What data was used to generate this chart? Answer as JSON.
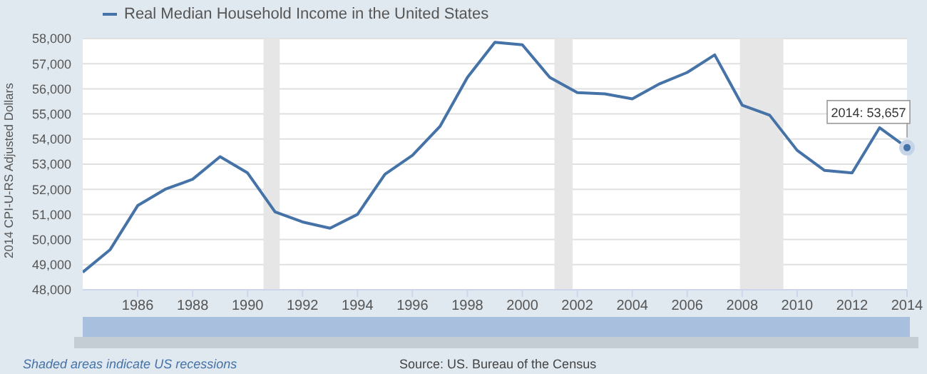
{
  "chart_data": {
    "type": "line",
    "ylabel": "2014 CPI-U-RS Adjusted Dollars",
    "x": [
      1984,
      1985,
      1986,
      1987,
      1988,
      1989,
      1990,
      1991,
      1992,
      1993,
      1994,
      1995,
      1996,
      1997,
      1998,
      1999,
      2000,
      2001,
      2002,
      2003,
      2004,
      2005,
      2006,
      2007,
      2008,
      2009,
      2010,
      2011,
      2012,
      2013,
      2014
    ],
    "series": [
      {
        "name": "Real Median Household Income in the United States",
        "color": "#4572a7",
        "values": [
          48700,
          49600,
          51350,
          52000,
          52400,
          53300,
          52650,
          51100,
          50700,
          50450,
          51000,
          52600,
          53350,
          54500,
          56450,
          57850,
          57750,
          56450,
          55850,
          55800,
          55600,
          56200,
          56650,
          57350,
          55350,
          54950,
          53550,
          52750,
          52650,
          54450,
          53657
        ]
      }
    ],
    "xlim": [
      1984,
      2014
    ],
    "xticks": [
      1986,
      1988,
      1990,
      1992,
      1994,
      1996,
      1998,
      2000,
      2002,
      2004,
      2006,
      2008,
      2010,
      2012,
      2014
    ],
    "ylim": [
      48000,
      58000
    ],
    "yticks": [
      {
        "value": 48000,
        "label": "48,000"
      },
      {
        "value": 49000,
        "label": "49,000"
      },
      {
        "value": 50000,
        "label": "50,000"
      },
      {
        "value": 51000,
        "label": "51,000"
      },
      {
        "value": 52000,
        "label": "52,000"
      },
      {
        "value": 53000,
        "label": "53,000"
      },
      {
        "value": 54000,
        "label": "54,000"
      },
      {
        "value": 55000,
        "label": "55,000"
      },
      {
        "value": 56000,
        "label": "56,000"
      },
      {
        "value": 57000,
        "label": "57,000"
      },
      {
        "value": 58000,
        "label": "58,000"
      }
    ],
    "grid": "y",
    "legend": "top left",
    "marker": "none",
    "line_style": "solid",
    "bands": [
      {
        "axis": "x",
        "from": 1990.58,
        "to": 1991.17,
        "color": "#e6e6e6"
      },
      {
        "axis": "x",
        "from": 2001.17,
        "to": 2001.83,
        "color": "#e6e6e6"
      },
      {
        "axis": "x",
        "from": 2007.92,
        "to": 2009.5,
        "color": "#e6e6e6"
      }
    ],
    "annotations": [
      {
        "text": "2014: 53,657",
        "x": 2014,
        "y": 53657
      },
      "Shaded areas indicate US recessions",
      "Source: US. Bureau of the Census"
    ]
  }
}
